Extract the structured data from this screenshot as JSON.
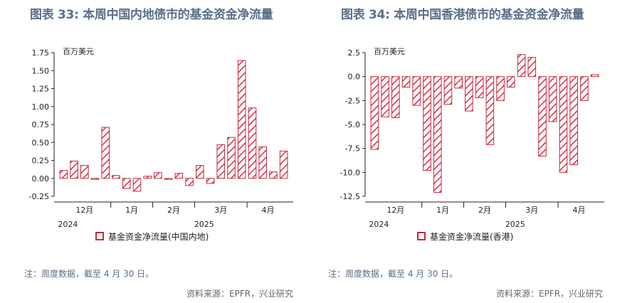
{
  "left": {
    "title": "图表 33: 本周中国内地债市的基金资金净流量",
    "unit": "百万美元",
    "legend": "基金资金净流量(中国内地)",
    "note": "注：周度数据，截至 4 月 30 日。",
    "source": "资料来源：EPFR，兴业研究"
  },
  "right": {
    "title": "图表 34: 本周中国香港债市的基金资金净流量",
    "unit": "百万美元",
    "legend": "基金资金净流量(香港)",
    "note": "注：周度数据，截至 4 月 30 日。",
    "source": "资料来源：EPFR，兴业研究"
  },
  "colors": {
    "bar_stroke": "#c8283c",
    "hatch": "#d9374b",
    "title": "#5b6f8a"
  },
  "chart_data": [
    {
      "type": "bar",
      "title": "图表 33: 本周中国内地债市的基金资金净流量",
      "ylabel": "百万美元",
      "ylim": [
        -0.25,
        1.75
      ],
      "yticks": [
        "-0.25",
        "0.00",
        "0.25",
        "0.50",
        "0.75",
        "1.00",
        "1.25",
        "1.50",
        "1.75"
      ],
      "ytick_values": [
        -0.25,
        0,
        0.25,
        0.5,
        0.75,
        1.0,
        1.25,
        1.5,
        1.75
      ],
      "month_labels": [
        "12月",
        "1月",
        "2月",
        "3月",
        "4月"
      ],
      "month_label_index": [
        2,
        6.5,
        10.5,
        15,
        19.5
      ],
      "month_boundaries": [
        4.5,
        8.5,
        12.5,
        17.5
      ],
      "year_labels": [
        {
          "text": "2024",
          "index": 0
        },
        {
          "text": "2025",
          "index": 13
        }
      ],
      "series": [
        {
          "name": "基金资金净流量(中国内地)",
          "values": [
            0.11,
            0.24,
            0.18,
            -0.01,
            0.71,
            0.04,
            -0.14,
            -0.18,
            0.03,
            0.08,
            -0.01,
            0.07,
            -0.1,
            0.18,
            -0.07,
            0.47,
            0.57,
            1.64,
            0.98,
            0.44,
            0.09,
            0.38
          ]
        }
      ]
    },
    {
      "type": "bar",
      "title": "图表 34: 本周中国香港债市的基金资金净流量",
      "ylabel": "百万美元",
      "ylim": [
        -12.5,
        2.5
      ],
      "yticks": [
        "-12.5",
        "-10.0",
        "-7.5",
        "-5.0",
        "-2.5",
        "0.0",
        "2.5"
      ],
      "ytick_values": [
        -12.5,
        -10,
        -7.5,
        -5,
        -2.5,
        0,
        2.5
      ],
      "month_labels": [
        "12月",
        "1月",
        "2月",
        "3月",
        "4月"
      ],
      "month_label_index": [
        2,
        6.5,
        10.5,
        15,
        19.5
      ],
      "month_boundaries": [
        4.5,
        8.5,
        12.5,
        17.5
      ],
      "year_labels": [
        {
          "text": "2024",
          "index": 0
        },
        {
          "text": "2025",
          "index": 13
        }
      ],
      "series": [
        {
          "name": "基金资金净流量(香港)",
          "values": [
            -7.6,
            -4.2,
            -4.3,
            -1.1,
            -3.0,
            -9.8,
            -12.1,
            -2.9,
            -1.2,
            -3.6,
            -2.2,
            -7.1,
            -2.5,
            -1.1,
            2.3,
            2.0,
            -8.3,
            -4.7,
            -10.0,
            -9.2,
            -2.5,
            0.2
          ]
        }
      ]
    }
  ]
}
